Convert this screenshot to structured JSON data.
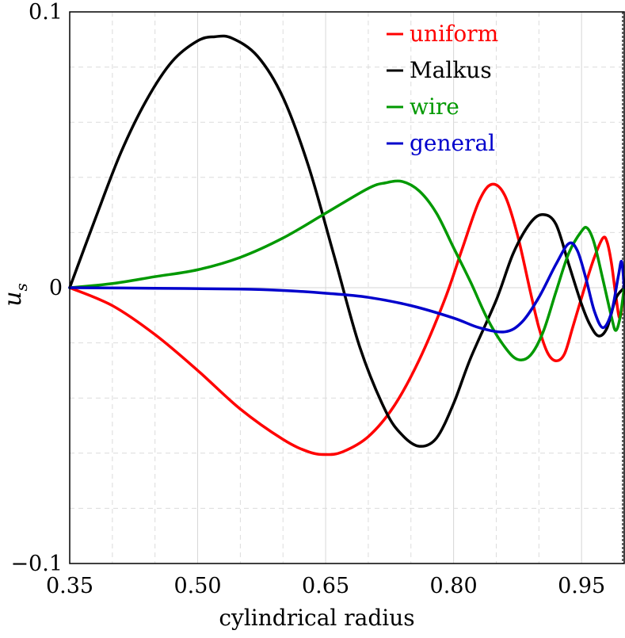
{
  "chart_data": {
    "type": "line",
    "xlabel": "cylindrical radius",
    "ylabel": "u",
    "ylabel_sub": "s",
    "xlim": [
      0.35,
      1.0
    ],
    "ylim": [
      -0.1,
      0.1
    ],
    "x_ticks": [
      "0.35",
      "0.50",
      "0.65",
      "0.80",
      "0.95"
    ],
    "y_ticks": [
      "−0.1",
      "0",
      "0.1"
    ],
    "grid": true,
    "legend_position": "top-right",
    "series": [
      {
        "name": "uniform",
        "color": "#ff0000",
        "points": [
          [
            0.35,
            0
          ],
          [
            0.4,
            -0.0065
          ],
          [
            0.45,
            -0.017
          ],
          [
            0.5,
            -0.03
          ],
          [
            0.55,
            -0.044
          ],
          [
            0.6,
            -0.055
          ],
          [
            0.63,
            -0.0595
          ],
          [
            0.65,
            -0.0605
          ],
          [
            0.67,
            -0.0595
          ],
          [
            0.7,
            -0.054
          ],
          [
            0.73,
            -0.043
          ],
          [
            0.76,
            -0.026
          ],
          [
            0.79,
            -0.004
          ],
          [
            0.81,
            0.014
          ],
          [
            0.83,
            0.0315
          ],
          [
            0.845,
            0.0375
          ],
          [
            0.86,
            0.0335
          ],
          [
            0.875,
            0.019
          ],
          [
            0.89,
            -0.0015
          ],
          [
            0.9,
            -0.0145
          ],
          [
            0.91,
            -0.0235
          ],
          [
            0.92,
            -0.0265
          ],
          [
            0.93,
            -0.024
          ],
          [
            0.94,
            -0.014
          ],
          [
            0.955,
            0.0015
          ],
          [
            0.965,
            0.011
          ],
          [
            0.975,
            0.018
          ],
          [
            0.98,
            0.0165
          ],
          [
            0.985,
            0.009
          ],
          [
            0.99,
            -0.0025
          ],
          [
            0.995,
            -0.011
          ],
          [
            1.0,
            0
          ]
        ]
      },
      {
        "name": "Malkus",
        "color": "#000000",
        "points": [
          [
            0.35,
            0
          ],
          [
            0.38,
            0.025
          ],
          [
            0.41,
            0.049
          ],
          [
            0.44,
            0.068
          ],
          [
            0.47,
            0.082
          ],
          [
            0.5,
            0.0895
          ],
          [
            0.52,
            0.091
          ],
          [
            0.54,
            0.0905
          ],
          [
            0.57,
            0.084
          ],
          [
            0.6,
            0.069
          ],
          [
            0.63,
            0.044
          ],
          [
            0.66,
            0.0115
          ],
          [
            0.69,
            -0.0215
          ],
          [
            0.72,
            -0.0445
          ],
          [
            0.74,
            -0.0535
          ],
          [
            0.76,
            -0.0575
          ],
          [
            0.78,
            -0.0545
          ],
          [
            0.8,
            -0.042
          ],
          [
            0.82,
            -0.0255
          ],
          [
            0.85,
            -0.0045
          ],
          [
            0.87,
            0.0125
          ],
          [
            0.89,
            0.0235
          ],
          [
            0.905,
            0.0265
          ],
          [
            0.92,
            0.023
          ],
          [
            0.935,
            0.0085
          ],
          [
            0.95,
            -0.006
          ],
          [
            0.96,
            -0.0135
          ],
          [
            0.97,
            -0.0175
          ],
          [
            0.98,
            -0.0145
          ],
          [
            0.99,
            -0.004
          ],
          [
            1.0,
            0
          ]
        ]
      },
      {
        "name": "wire",
        "color": "#009900",
        "points": [
          [
            0.35,
            0
          ],
          [
            0.4,
            0.0015
          ],
          [
            0.45,
            0.004
          ],
          [
            0.5,
            0.0065
          ],
          [
            0.55,
            0.011
          ],
          [
            0.6,
            0.018
          ],
          [
            0.65,
            0.027
          ],
          [
            0.7,
            0.036
          ],
          [
            0.72,
            0.038
          ],
          [
            0.74,
            0.0385
          ],
          [
            0.76,
            0.035
          ],
          [
            0.78,
            0.027
          ],
          [
            0.8,
            0.0145
          ],
          [
            0.82,
            0.002
          ],
          [
            0.84,
            -0.0115
          ],
          [
            0.86,
            -0.0215
          ],
          [
            0.875,
            -0.026
          ],
          [
            0.89,
            -0.0245
          ],
          [
            0.905,
            -0.016
          ],
          [
            0.92,
            -0.0015
          ],
          [
            0.935,
            0.0125
          ],
          [
            0.95,
            0.0205
          ],
          [
            0.957,
            0.0215
          ],
          [
            0.965,
            0.016
          ],
          [
            0.975,
            0.003
          ],
          [
            0.985,
            -0.0105
          ],
          [
            0.99,
            -0.0155
          ],
          [
            0.995,
            -0.011
          ],
          [
            1.0,
            0
          ]
        ]
      },
      {
        "name": "general",
        "color": "#0000cc",
        "points": [
          [
            0.35,
            0
          ],
          [
            0.45,
            -0.0002
          ],
          [
            0.55,
            -0.0005
          ],
          [
            0.6,
            -0.001
          ],
          [
            0.65,
            -0.002
          ],
          [
            0.7,
            -0.0035
          ],
          [
            0.75,
            -0.0065
          ],
          [
            0.8,
            -0.011
          ],
          [
            0.83,
            -0.0145
          ],
          [
            0.86,
            -0.016
          ],
          [
            0.88,
            -0.0125
          ],
          [
            0.9,
            -0.0035
          ],
          [
            0.92,
            0.0085
          ],
          [
            0.935,
            0.016
          ],
          [
            0.945,
            0.0135
          ],
          [
            0.955,
            0.0035
          ],
          [
            0.965,
            -0.0085
          ],
          [
            0.975,
            -0.0145
          ],
          [
            0.985,
            -0.009
          ],
          [
            0.993,
            0.004
          ],
          [
            0.997,
            0.0095
          ],
          [
            1.0,
            0
          ]
        ]
      }
    ]
  }
}
